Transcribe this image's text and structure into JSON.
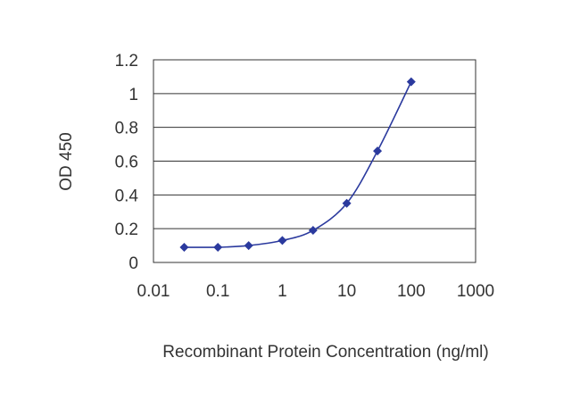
{
  "chart_data": {
    "type": "line",
    "title": "",
    "xlabel": "Recombinant Protein Concentration (ng/ml)",
    "ylabel": "OD 450",
    "xscale": "log",
    "xlim": [
      0.01,
      1000
    ],
    "ylim": [
      0,
      1.2
    ],
    "xticks": [
      {
        "value": 0.01,
        "label": "0.01"
      },
      {
        "value": 0.1,
        "label": "0.1"
      },
      {
        "value": 1,
        "label": "1"
      },
      {
        "value": 10,
        "label": "10"
      },
      {
        "value": 100,
        "label": "100"
      },
      {
        "value": 1000,
        "label": "1000"
      }
    ],
    "yticks": [
      {
        "value": 0,
        "label": "0"
      },
      {
        "value": 0.2,
        "label": "0.2"
      },
      {
        "value": 0.4,
        "label": "0.4"
      },
      {
        "value": 0.6,
        "label": "0.6"
      },
      {
        "value": 0.8,
        "label": "0.8"
      },
      {
        "value": 1,
        "label": "1"
      },
      {
        "value": 1.2,
        "label": "1.2"
      }
    ],
    "grid": "horizontal",
    "legend": "none",
    "series": [
      {
        "color": "#2b3a9e",
        "marker": "diamond",
        "x": [
          0.03,
          0.1,
          0.3,
          1,
          3,
          10,
          30,
          100
        ],
        "y": [
          0.09,
          0.09,
          0.1,
          0.13,
          0.19,
          0.35,
          0.66,
          1.07
        ]
      }
    ]
  }
}
